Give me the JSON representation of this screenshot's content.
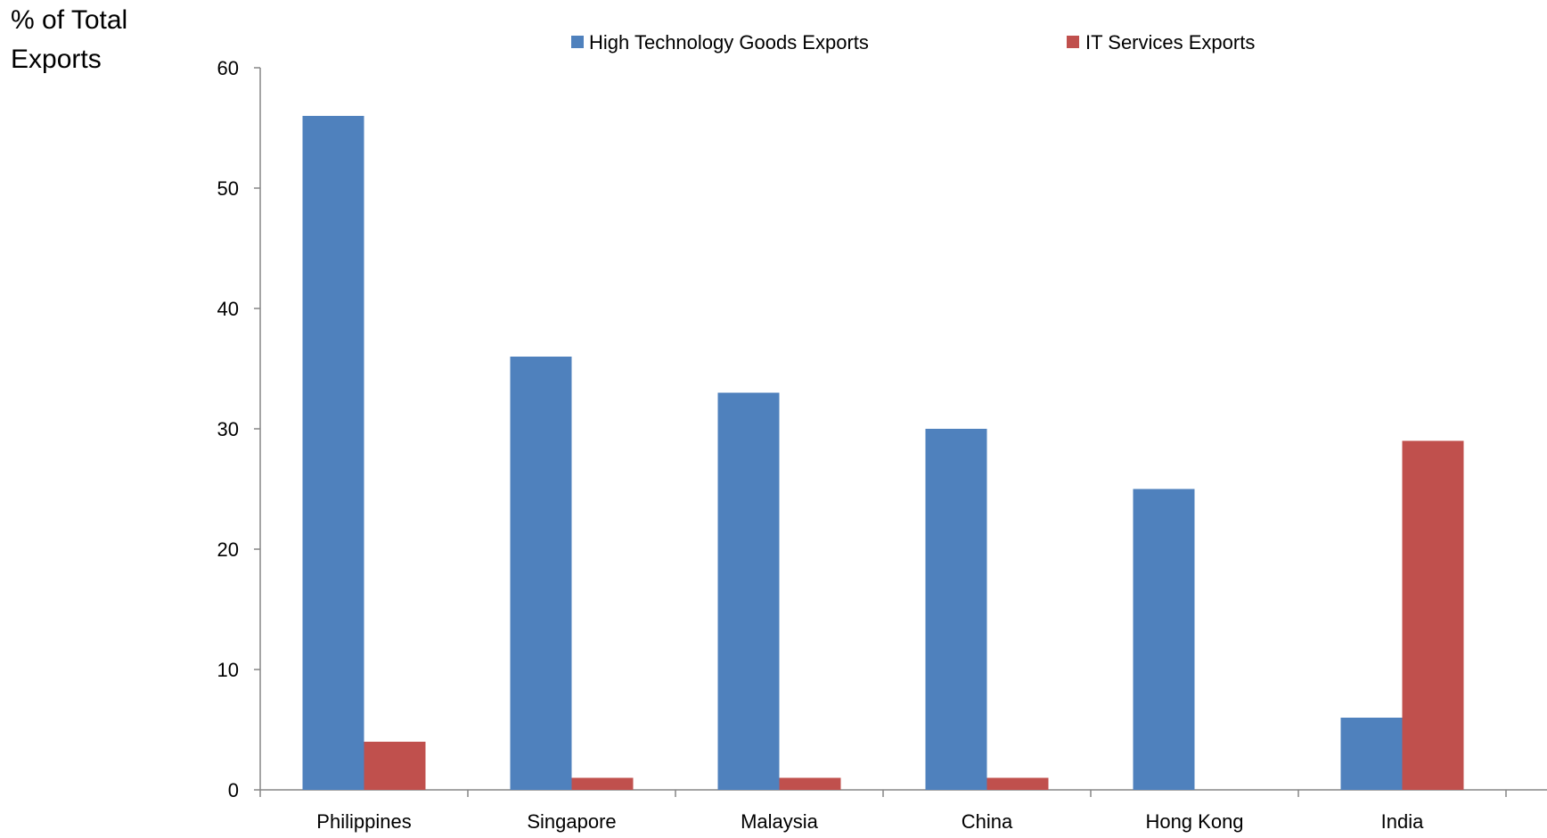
{
  "chart_data": {
    "type": "bar",
    "ylabel": "% of Total Exports",
    "ylabel_lines": [
      "% of Total",
      "Exports"
    ],
    "categories": [
      "Philippines",
      "Singapore",
      "Malaysia",
      "China",
      "Hong Kong",
      "India"
    ],
    "series": [
      {
        "name": "High Technology Goods Exports",
        "color": "#4F81BD",
        "values": [
          56,
          36,
          33,
          30,
          25,
          6
        ]
      },
      {
        "name": "IT Services Exports",
        "color": "#C0504D",
        "values": [
          4,
          1,
          1,
          1,
          0,
          29
        ]
      }
    ],
    "ylim": [
      0,
      60
    ],
    "yticks": [
      0,
      10,
      20,
      30,
      40,
      50,
      60
    ],
    "grid": false,
    "legend": "top"
  }
}
